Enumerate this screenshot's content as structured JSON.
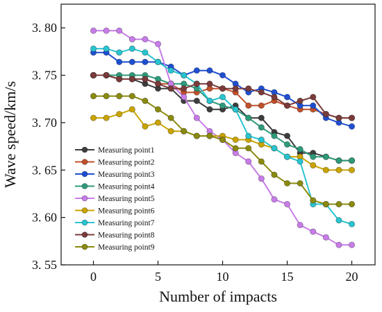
{
  "chart_data": {
    "type": "line",
    "title": "",
    "xlabel": "Number of impacts",
    "ylabel": "Wave speed/km/s",
    "xlim": [
      -2.5,
      21.8
    ],
    "ylim": [
      3.55,
      3.825
    ],
    "xticks": [
      0,
      5,
      10,
      15,
      20
    ],
    "xtick_labels": [
      "0",
      "5",
      "10",
      "15",
      "20"
    ],
    "yticks": [
      3.55,
      3.6,
      3.65,
      3.7,
      3.75,
      3.8
    ],
    "ytick_labels": [
      "3. 55",
      "3. 60",
      "3. 65",
      "3. 70",
      "3. 75",
      "3. 80"
    ],
    "grid": false,
    "legend_position": "lower-left",
    "x": [
      0,
      1,
      2,
      3,
      4,
      5,
      6,
      7,
      8,
      9,
      10,
      11,
      12,
      13,
      14,
      15,
      16,
      17,
      18,
      19,
      20
    ],
    "series": [
      {
        "name": "Measuring point1",
        "color": "#3d3d3d",
        "values": [
          3.75,
          3.75,
          3.746,
          3.746,
          3.741,
          3.736,
          3.736,
          3.723,
          3.723,
          3.714,
          3.714,
          3.718,
          3.705,
          3.705,
          3.69,
          3.686,
          3.668,
          3.668,
          3.664,
          3.66,
          3.66
        ]
      },
      {
        "name": "Measuring point2",
        "color": "#c0502a",
        "values": [
          3.75,
          3.75,
          3.746,
          3.746,
          3.746,
          3.741,
          3.741,
          3.732,
          3.732,
          3.736,
          3.736,
          3.732,
          3.718,
          3.718,
          3.723,
          3.718,
          3.714,
          3.714,
          3.709,
          3.705,
          3.705
        ]
      },
      {
        "name": "Measuring point3",
        "color": "#1f4fd1",
        "values": [
          3.774,
          3.774,
          3.764,
          3.764,
          3.764,
          3.764,
          3.759,
          3.75,
          3.755,
          3.755,
          3.75,
          3.741,
          3.732,
          3.736,
          3.732,
          3.727,
          3.718,
          3.718,
          3.705,
          3.7,
          3.696
        ]
      },
      {
        "name": "Measuring point4",
        "color": "#2e9a7a",
        "values": [
          3.75,
          3.75,
          3.75,
          3.75,
          3.75,
          3.746,
          3.741,
          3.741,
          3.736,
          3.723,
          3.718,
          3.714,
          3.705,
          3.695,
          3.686,
          3.677,
          3.672,
          3.664,
          3.664,
          3.66,
          3.66
        ]
      },
      {
        "name": "Measuring point5",
        "color": "#c77ce8",
        "values": [
          3.797,
          3.797,
          3.797,
          3.788,
          3.788,
          3.783,
          3.741,
          3.727,
          3.705,
          3.691,
          3.682,
          3.668,
          3.659,
          3.641,
          3.619,
          3.614,
          3.592,
          3.585,
          3.579,
          3.571,
          3.571
        ]
      },
      {
        "name": "Measuring point6",
        "color": "#c9a400",
        "values": [
          3.705,
          3.705,
          3.709,
          3.714,
          3.696,
          3.7,
          3.691,
          3.691,
          3.686,
          3.686,
          3.686,
          3.682,
          3.682,
          3.677,
          3.673,
          3.664,
          3.664,
          3.655,
          3.65,
          3.65,
          3.65
        ]
      },
      {
        "name": "Measuring point7",
        "color": "#28c4d0",
        "values": [
          3.778,
          3.778,
          3.774,
          3.778,
          3.774,
          3.764,
          3.755,
          3.75,
          3.741,
          3.723,
          3.727,
          3.714,
          3.686,
          3.682,
          3.673,
          3.664,
          3.659,
          3.614,
          3.614,
          3.597,
          3.593
        ]
      },
      {
        "name": "Measuring point8",
        "color": "#7a3b3b",
        "values": [
          3.75,
          3.75,
          3.746,
          3.746,
          3.746,
          3.741,
          3.736,
          3.736,
          3.741,
          3.741,
          3.736,
          3.736,
          3.736,
          3.732,
          3.727,
          3.718,
          3.723,
          3.727,
          3.709,
          3.705,
          3.705
        ]
      },
      {
        "name": "Measuring point9",
        "color": "#8a8a10",
        "values": [
          3.728,
          3.728,
          3.728,
          3.728,
          3.723,
          3.714,
          3.705,
          3.691,
          3.686,
          3.686,
          3.682,
          3.673,
          3.673,
          3.659,
          3.645,
          3.636,
          3.636,
          3.618,
          3.614,
          3.614,
          3.614
        ]
      }
    ]
  }
}
